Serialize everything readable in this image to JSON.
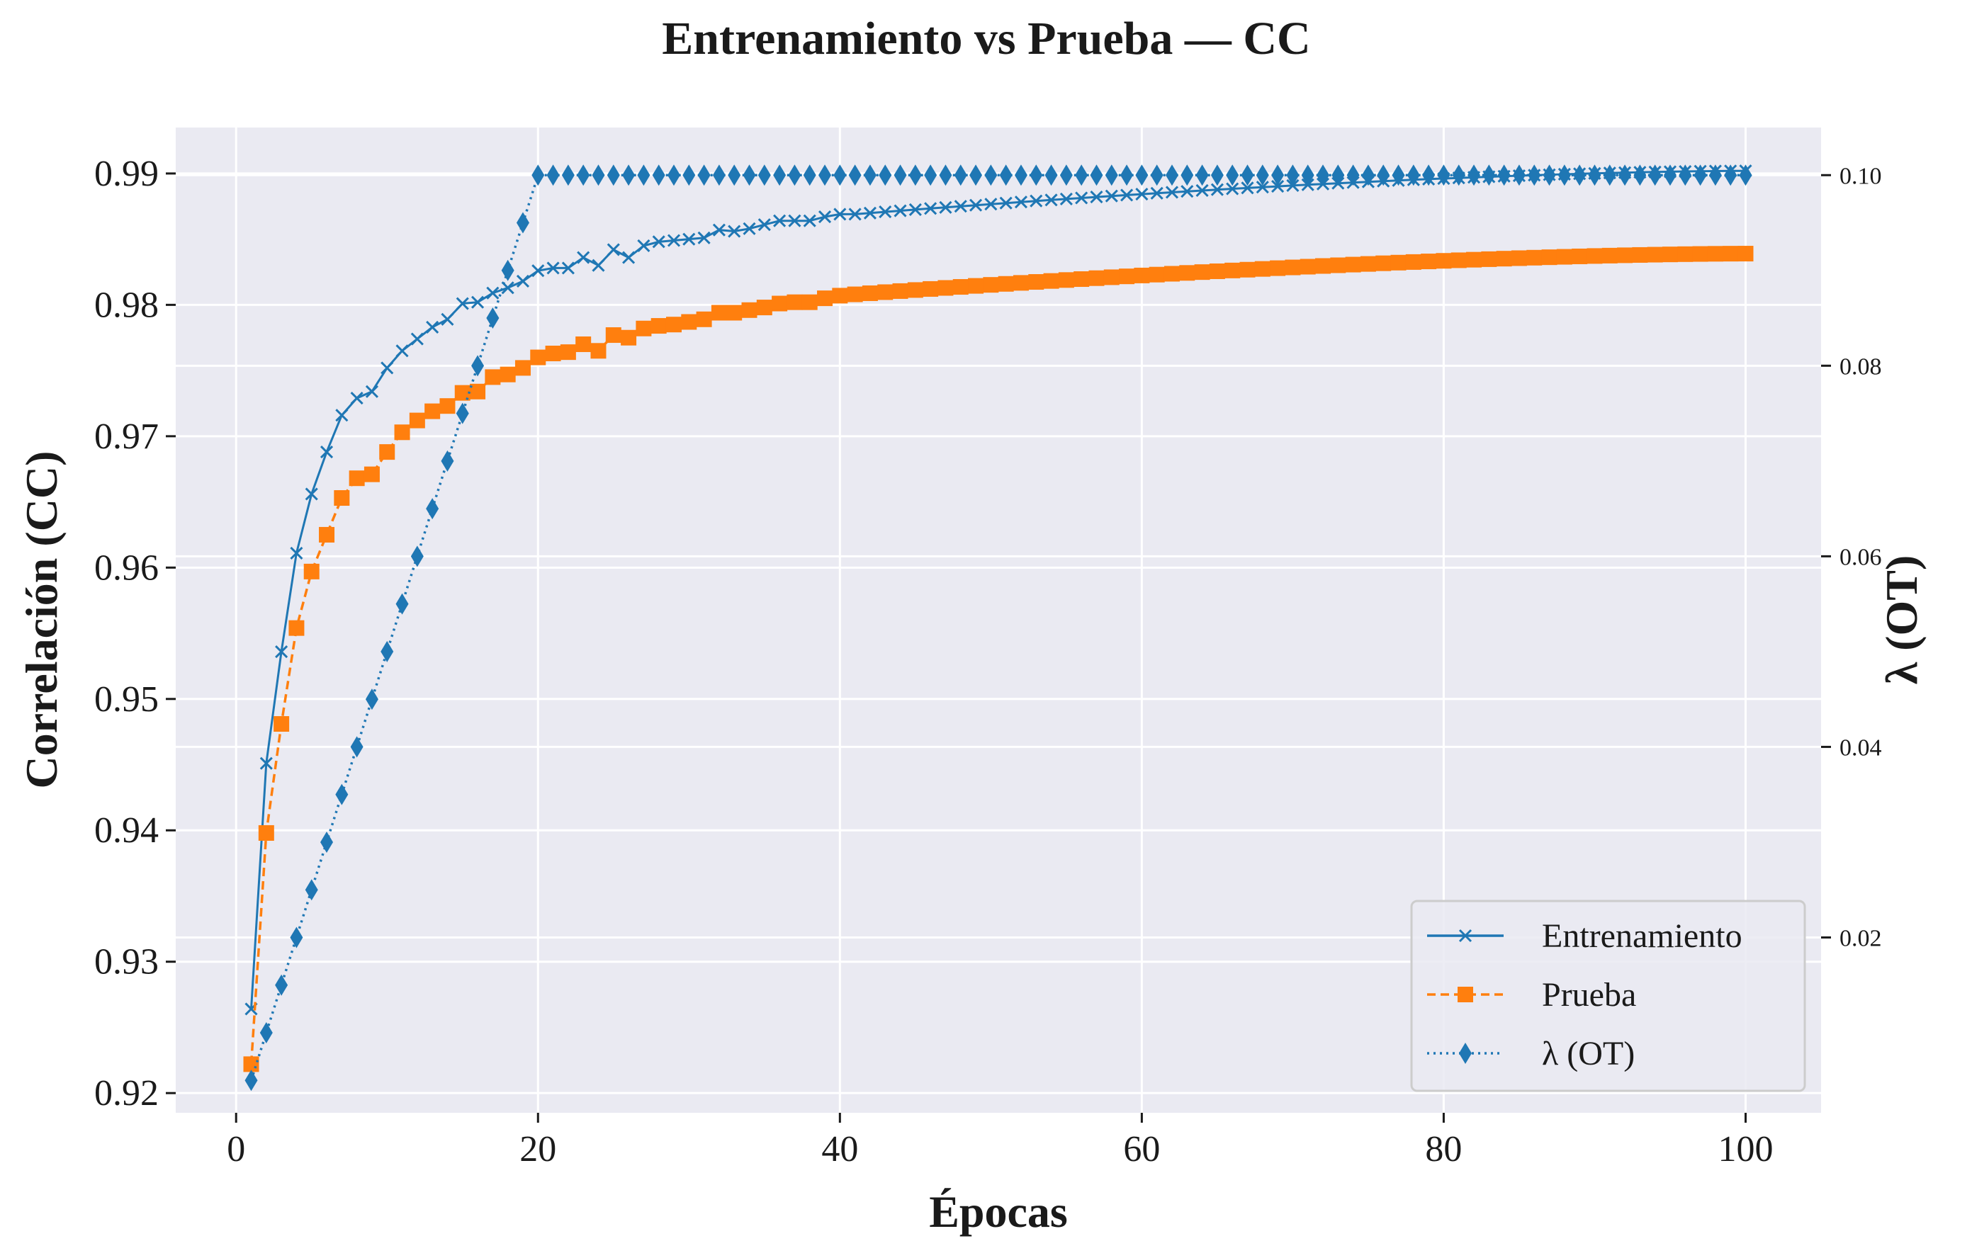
{
  "chart_data": {
    "type": "line",
    "title": "Entrenamiento vs Prueba — CC",
    "xlabel": "Épocas",
    "ylabel": "Correlación (CC)",
    "y2label": "λ (OT)",
    "xlim": [
      -4,
      105
    ],
    "ylim": [
      0.9185,
      0.9935
    ],
    "y2lim": [
      0.0016,
      0.105
    ],
    "x_ticks": [
      0,
      20,
      40,
      60,
      80,
      100
    ],
    "y_ticks": [
      0.92,
      0.93,
      0.94,
      0.95,
      0.96,
      0.97,
      0.98,
      0.99
    ],
    "y2_ticks": [
      0.02,
      0.04,
      0.06,
      0.08,
      0.1
    ],
    "x_tick_labels": [
      "0",
      "20",
      "40",
      "60",
      "80",
      "100"
    ],
    "y_tick_labels": [
      "0.92",
      "0.93",
      "0.94",
      "0.95",
      "0.96",
      "0.97",
      "0.98",
      "0.99"
    ],
    "y2_tick_labels": [
      "0.02",
      "0.04",
      "0.06",
      "0.08",
      "0.10"
    ],
    "grid": true,
    "legend_position": "lower-right",
    "background": "#eaeaf2",
    "series": [
      {
        "name": "Entrenamiento",
        "axis": "left",
        "color": "#1f77b4",
        "marker": "x",
        "linestyle": "solid",
        "y_head": [
          0.9264,
          0.9451,
          0.9536,
          0.9611,
          0.9656,
          0.9688,
          0.9716,
          0.9729,
          0.9734,
          0.9752,
          0.9765,
          0.9774,
          0.9783,
          0.9789,
          0.9801,
          0.9802,
          0.9809,
          0.9813,
          0.9818,
          0.9826,
          0.9828,
          0.9828,
          0.9836,
          0.983,
          0.9842,
          0.9836,
          0.9845,
          0.9848,
          0.9849,
          0.985,
          0.9851,
          0.9857,
          0.9856,
          0.9858,
          0.9861,
          0.9864,
          0.9864,
          0.9864,
          0.9867,
          0.9869,
          0.9869
        ],
        "y_tail_start": 0.9869,
        "y_end": 0.9902
      },
      {
        "name": "Prueba",
        "axis": "left",
        "color": "#ff7f0e",
        "marker": "square",
        "linestyle": "dashed",
        "y_head": [
          0.9222,
          0.9398,
          0.9481,
          0.9554,
          0.9597,
          0.9625,
          0.9653,
          0.9668,
          0.9671,
          0.9688,
          0.9703,
          0.9712,
          0.9719,
          0.9723,
          0.9733,
          0.9734,
          0.9745,
          0.9747,
          0.9752,
          0.976,
          0.9763,
          0.9764,
          0.977,
          0.9765,
          0.9777,
          0.9775,
          0.9782,
          0.9784,
          0.9785,
          0.9787,
          0.9789,
          0.9794,
          0.9794,
          0.9796,
          0.9798,
          0.9801,
          0.9802,
          0.9802,
          0.9805,
          0.9807,
          0.9808
        ],
        "y_tail_start": 0.9808,
        "y_end": 0.9839
      },
      {
        "name": "λ (OT)",
        "axis": "right",
        "color": "#1f77b4",
        "marker": "thin_diamond",
        "linestyle": "dotted",
        "y_head": [
          0.005,
          0.01,
          0.015,
          0.02,
          0.025,
          0.03,
          0.035,
          0.04,
          0.045,
          0.05,
          0.055,
          0.06,
          0.065,
          0.07,
          0.075,
          0.08,
          0.085,
          0.09,
          0.095,
          0.1
        ],
        "y_tail_start": 0.1,
        "y_end": 0.1
      }
    ],
    "x_count": 100
  }
}
